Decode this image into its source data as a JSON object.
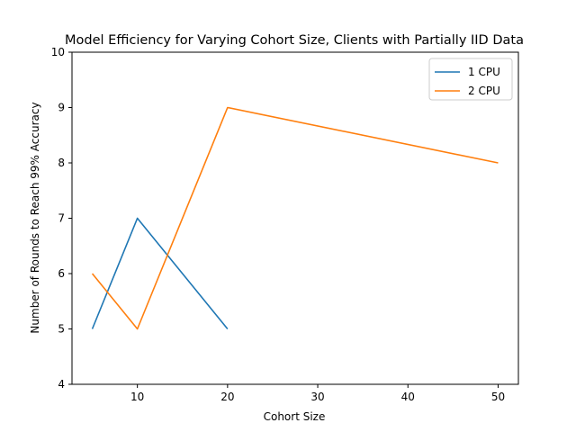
{
  "chart_data": {
    "type": "line",
    "title": "Model Efficiency for Varying Cohort Size, Clients with Partially IID Data",
    "xlabel": "Cohort Size",
    "ylabel": "Number of Rounds to Reach 99% Accuracy",
    "xlim": [
      2.75,
      52.25
    ],
    "ylim": [
      4,
      10
    ],
    "xticks": [
      10,
      20,
      30,
      40,
      50
    ],
    "yticks": [
      4,
      5,
      6,
      7,
      8,
      9,
      10
    ],
    "grid": false,
    "legend_position": "top-right",
    "series": [
      {
        "name": "1 CPU",
        "color": "#1f77b4",
        "x": [
          5,
          10,
          20
        ],
        "y": [
          5,
          7,
          5
        ]
      },
      {
        "name": "2 CPU",
        "color": "#ff7f0e",
        "x": [
          5,
          10,
          20,
          50
        ],
        "y": [
          6,
          5,
          9,
          8
        ]
      }
    ]
  }
}
